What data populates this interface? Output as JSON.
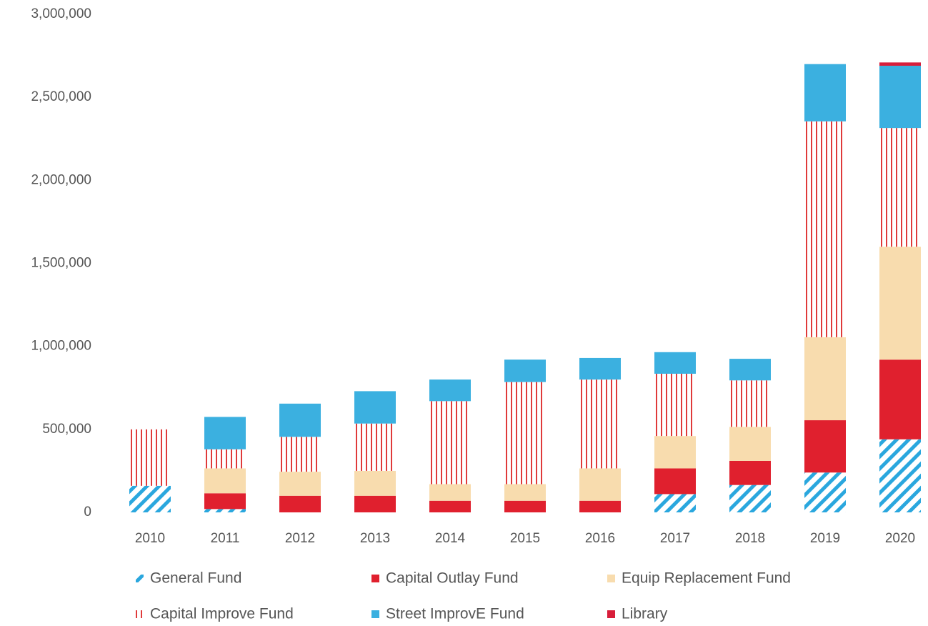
{
  "chart_data": {
    "type": "stacked_bar",
    "categories": [
      "2010",
      "2011",
      "2012",
      "2013",
      "2014",
      "2015",
      "2016",
      "2017",
      "2018",
      "2019",
      "2020"
    ],
    "ylim": [
      0,
      3000000
    ],
    "yticks": [
      0,
      {
        "value": 500000,
        "label": "500,000"
      },
      {
        "value": 1000000,
        "label": "1,000,000"
      },
      {
        "value": 1500000,
        "label": "1,500,000"
      },
      {
        "value": 2000000,
        "label": "2,000,000"
      },
      {
        "value": 2500000,
        "label": "2,500,000"
      },
      {
        "value": 3000000,
        "label": "3,000,000"
      }
    ],
    "grid": false,
    "legend": "bottom",
    "series": [
      {
        "name": "General Fund",
        "color": "#2aa7de",
        "pattern": "diagonal",
        "values": [
          160000,
          20000,
          0,
          0,
          0,
          0,
          0,
          110000,
          165000,
          240000,
          440000
        ]
      },
      {
        "name": "Capital Outlay Fund",
        "color": "#e0202e",
        "pattern": "solid",
        "values": [
          0,
          95000,
          100000,
          100000,
          70000,
          70000,
          70000,
          155000,
          145000,
          315000,
          480000
        ]
      },
      {
        "name": "Equip Replacement Fund",
        "color": "#f8dcae",
        "pattern": "solid",
        "values": [
          0,
          150000,
          145000,
          150000,
          100000,
          100000,
          195000,
          195000,
          205000,
          500000,
          680000
        ]
      },
      {
        "name": "Capital Improve Fund",
        "color": "#e03a3a",
        "pattern": "vertical",
        "values": [
          340000,
          115000,
          210000,
          285000,
          500000,
          615000,
          535000,
          375000,
          280000,
          1300000,
          715000
        ]
      },
      {
        "name": "Street ImprovE Fund",
        "color": "#3bb0e0",
        "pattern": "solid",
        "values": [
          0,
          195000,
          200000,
          195000,
          130000,
          135000,
          130000,
          130000,
          130000,
          345000,
          375000
        ]
      },
      {
        "name": "Library",
        "color": "#d81e3a",
        "pattern": "solid",
        "values": [
          0,
          0,
          0,
          0,
          0,
          0,
          0,
          0,
          0,
          0,
          20000
        ]
      }
    ]
  }
}
